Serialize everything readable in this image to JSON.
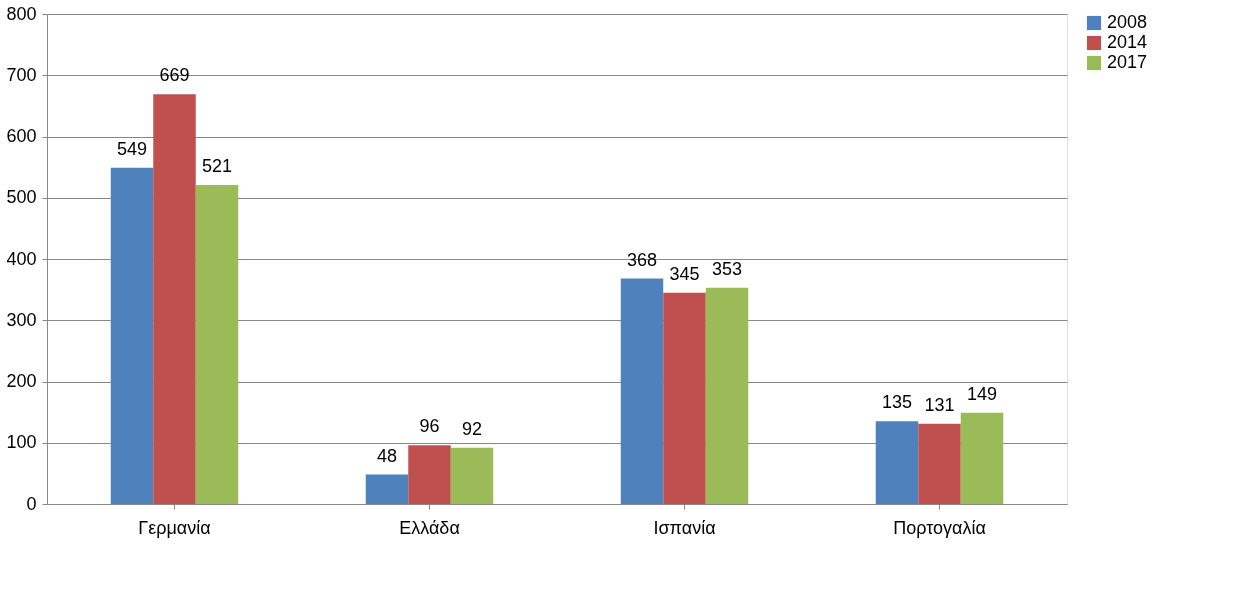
{
  "chart_data": {
    "type": "bar",
    "categories": [
      "Γερμανία",
      "Ελλάδα",
      "Ισπανία",
      "Πορτογαλία"
    ],
    "series": [
      {
        "name": "2008",
        "color": "#4f81bd",
        "values": [
          549,
          48,
          368,
          135
        ]
      },
      {
        "name": "2014",
        "color": "#c0504d",
        "values": [
          669,
          96,
          345,
          131
        ]
      },
      {
        "name": "2017",
        "color": "#9bbb59",
        "values": [
          521,
          92,
          353,
          149
        ]
      }
    ],
    "ylim": [
      0,
      800
    ],
    "yticks": [
      0,
      100,
      200,
      300,
      400,
      500,
      600,
      700,
      800
    ],
    "grid": "y",
    "legend": "right",
    "data_labels": true
  }
}
